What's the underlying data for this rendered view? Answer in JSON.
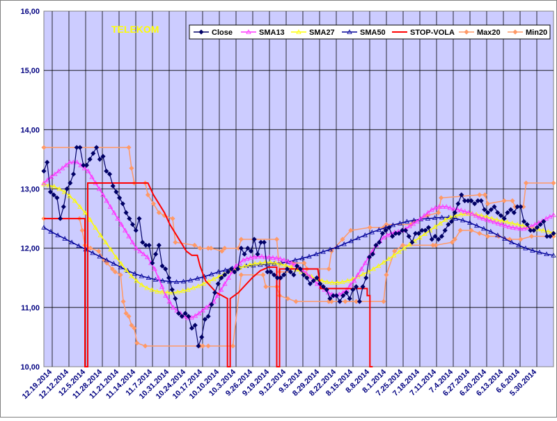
{
  "chart_data": {
    "type": "line",
    "title": "TELEKOM",
    "ylim": [
      10,
      16
    ],
    "y_ticks": [
      "10,00",
      "11,00",
      "12,00",
      "13,00",
      "14,00",
      "15,00",
      "16,00"
    ],
    "x_ticks": [
      "12.19.2014",
      "12.12.2014",
      "12.5.2014",
      "11.28.2014",
      "11.21.2014",
      "11.14.2014",
      "11.7.2014",
      "10.31.2014",
      "10.24.2014",
      "10.17.2014",
      "10.10.2014",
      "10.3.2014",
      "9.26.2014",
      "9.19.2014",
      "9.12.2014",
      "9.5.2014",
      "8.29.2014",
      "8.22.2014",
      "8.15.2014",
      "8.8.2014",
      "8.1.2014",
      "7.25.2014",
      "7.18.2014",
      "7.11.2014",
      "7.4.2014",
      "6.27.2014",
      "6.20.2014",
      "6.13.2014",
      "6.6.2014",
      "5.30.2014"
    ],
    "grid": true,
    "legend_position": "top",
    "colors": {
      "plot_bg": "#ccccff",
      "frame": "#808080",
      "grid": "#000000",
      "Close": "#000066",
      "SMA13": "#ff33ff",
      "SMA27": "#ffff00",
      "SMA50": "#000099",
      "STOP-VOLA": "#ff0000",
      "Max20": "#ff9966",
      "Min20": "#ff9966",
      "title": "#ffff00"
    },
    "series": [
      {
        "name": "Close",
        "marker": "diamond",
        "values": [
          13.3,
          13.45,
          12.95,
          12.9,
          12.85,
          12.5,
          12.7,
          13.0,
          13.1,
          13.25,
          13.7,
          13.7,
          13.4,
          13.4,
          13.5,
          13.6,
          13.7,
          13.5,
          13.55,
          13.3,
          13.25,
          13.05,
          12.95,
          12.85,
          12.75,
          12.6,
          12.5,
          12.4,
          12.3,
          12.5,
          12.1,
          12.05,
          12.05,
          11.75,
          11.9,
          12.05,
          11.7,
          11.65,
          11.5,
          11.3,
          11.15,
          10.9,
          10.85,
          10.9,
          10.85,
          10.65,
          10.7,
          10.35,
          10.5,
          10.8,
          10.85,
          11.05,
          11.25,
          11.4,
          11.5,
          11.55,
          11.6,
          11.65,
          11.6,
          11.65,
          12.0,
          11.9,
          12.0,
          11.95,
          12.15,
          11.9,
          12.1,
          12.1,
          11.6,
          11.6,
          11.55,
          11.5,
          11.5,
          11.55,
          11.65,
          11.6,
          11.55,
          11.7,
          11.65,
          11.55,
          11.5,
          11.4,
          11.45,
          11.5,
          11.4,
          11.35,
          11.3,
          11.15,
          11.2,
          11.2,
          11.1,
          11.2,
          11.25,
          11.15,
          11.3,
          11.35,
          11.1,
          11.35,
          11.5,
          11.85,
          11.9,
          12.05,
          12.1,
          12.25,
          12.3,
          12.35,
          12.2,
          12.25,
          12.25,
          12.3,
          12.3,
          12.2,
          12.1,
          12.25,
          12.25,
          12.3,
          12.3,
          12.35,
          12.15,
          12.2,
          12.15,
          12.2,
          12.3,
          12.4,
          12.45,
          12.6,
          12.75,
          12.9,
          12.8,
          12.8,
          12.8,
          12.75,
          12.8,
          12.8,
          12.65,
          12.6,
          12.65,
          12.7,
          12.6,
          12.55,
          12.5,
          12.6,
          12.65,
          12.6,
          12.7,
          12.7,
          12.45,
          12.4,
          12.3,
          12.3,
          12.35,
          12.4,
          12.45,
          12.2,
          12.2,
          12.25
        ]
      },
      {
        "name": "SMA13",
        "marker": "triangle",
        "values": [
          13.1,
          13.15,
          13.2,
          13.25,
          13.3,
          13.35,
          13.4,
          13.45,
          13.45,
          13.45,
          13.4,
          13.35,
          13.3,
          13.2,
          13.1,
          13.0,
          12.9,
          12.8,
          12.7,
          12.6,
          12.5,
          12.4,
          12.3,
          12.2,
          12.1,
          12.0,
          11.95,
          11.9,
          11.85,
          11.75,
          11.65,
          11.5,
          11.35,
          11.2,
          11.1,
          11.0,
          10.95,
          10.9,
          10.85,
          10.82,
          10.83,
          10.86,
          10.9,
          10.95,
          11.0,
          11.05,
          11.1,
          11.2,
          11.3,
          11.4,
          11.5,
          11.6,
          11.7,
          11.75,
          11.8,
          11.82,
          11.84,
          11.85,
          11.86,
          11.86,
          11.85,
          11.85,
          11.84,
          11.83,
          11.82,
          11.8,
          11.78,
          11.75,
          11.72,
          11.68,
          11.63,
          11.58,
          11.52,
          11.46,
          11.4,
          11.35,
          11.3,
          11.25,
          11.22,
          11.2,
          11.22,
          11.25,
          11.3,
          11.38,
          11.45,
          11.55,
          11.65,
          11.75,
          11.85,
          11.95,
          12.05,
          12.12,
          12.18,
          12.22,
          12.25,
          12.27,
          12.28,
          12.3,
          12.33,
          12.37,
          12.41,
          12.45,
          12.5,
          12.55,
          12.6,
          12.65,
          12.68,
          12.7,
          12.7,
          12.7,
          12.68,
          12.66,
          12.65,
          12.64,
          12.62,
          12.6,
          12.58,
          12.55,
          12.52,
          12.5,
          12.48,
          12.46,
          12.44,
          12.42,
          12.4,
          12.38,
          12.36,
          12.35,
          12.34,
          12.33,
          12.33,
          12.35,
          12.37,
          12.4,
          12.43,
          12.46,
          12.5,
          12.53,
          12.56
        ]
      },
      {
        "name": "SMA27",
        "marker": "triangle",
        "values": [
          13.08,
          13.06,
          13.04,
          13.0,
          12.95,
          12.88,
          12.8,
          12.7,
          12.6,
          12.48,
          12.35,
          12.22,
          12.1,
          11.98,
          11.85,
          11.74,
          11.63,
          11.53,
          11.45,
          11.38,
          11.33,
          11.3,
          11.27,
          11.26,
          11.25,
          11.25,
          11.26,
          11.28,
          11.3,
          11.33,
          11.36,
          11.4,
          11.44,
          11.48,
          11.52,
          11.56,
          11.6,
          11.64,
          11.67,
          11.7,
          11.72,
          11.74,
          11.75,
          11.76,
          11.76,
          11.75,
          11.73,
          11.71,
          11.68,
          11.64,
          11.6,
          11.56,
          11.52,
          11.48,
          11.45,
          11.43,
          11.42,
          11.42,
          11.43,
          11.45,
          11.48,
          11.52,
          11.56,
          11.6,
          11.65,
          11.7,
          11.76,
          11.82,
          11.88,
          11.94,
          12.0,
          12.06,
          12.12,
          12.18,
          12.24,
          12.3,
          12.36,
          12.42,
          12.48,
          12.52,
          12.55,
          12.57,
          12.58,
          12.58,
          12.57,
          12.55,
          12.53,
          12.5,
          12.48,
          12.46,
          12.44,
          12.42,
          12.4,
          12.38,
          12.36,
          12.34,
          12.32,
          12.3,
          12.28,
          12.26
        ]
      },
      {
        "name": "SMA50",
        "marker": "triangle",
        "values": [
          12.35,
          12.28,
          12.22,
          12.16,
          12.1,
          12.04,
          11.98,
          11.92,
          11.86,
          11.8,
          11.74,
          11.68,
          11.62,
          11.57,
          11.53,
          11.5,
          11.47,
          11.45,
          11.44,
          11.43,
          11.44,
          11.46,
          11.49,
          11.52,
          11.56,
          11.6,
          11.63,
          11.66,
          11.68,
          11.7,
          11.71,
          11.72,
          11.73,
          11.74,
          11.75,
          11.77,
          11.8,
          11.83,
          11.86,
          11.9,
          11.94,
          11.98,
          12.02,
          12.07,
          12.12,
          12.17,
          12.22,
          12.27,
          12.31,
          12.35,
          12.39,
          12.42,
          12.45,
          12.47,
          12.49,
          12.5,
          12.51,
          12.52,
          12.52,
          12.5,
          12.47,
          12.43,
          12.38,
          12.33,
          12.28,
          12.22,
          12.16,
          12.1,
          12.05,
          12.0,
          11.96,
          11.93,
          11.9,
          11.88
        ]
      },
      {
        "name": "STOP-VOLA",
        "points": [
          [
            0,
            12.5
          ],
          [
            15,
            12.5
          ],
          [
            15,
            10
          ],
          [
            16,
            10
          ],
          [
            16,
            13.1
          ],
          [
            38,
            13.1
          ],
          [
            40,
            12.9
          ],
          [
            42,
            12.75
          ],
          [
            44,
            12.6
          ],
          [
            46,
            12.4
          ],
          [
            48,
            12.25
          ],
          [
            50,
            12.1
          ],
          [
            52,
            11.95
          ],
          [
            54,
            11.88
          ],
          [
            56,
            11.88
          ],
          [
            57,
            11.7
          ],
          [
            59,
            11.45
          ],
          [
            61,
            11.35
          ],
          [
            63,
            11.25
          ],
          [
            65,
            11.2
          ],
          [
            67,
            11.15
          ],
          [
            67,
            10
          ],
          [
            68,
            10
          ],
          [
            68,
            11.15
          ],
          [
            71,
            11.25
          ],
          [
            73,
            11.35
          ],
          [
            76,
            11.5
          ],
          [
            79,
            11.62
          ],
          [
            82,
            11.68
          ],
          [
            85,
            11.68
          ],
          [
            85,
            10
          ],
          [
            86,
            10
          ],
          [
            86,
            11.65
          ],
          [
            100,
            11.65
          ],
          [
            101,
            11.32
          ],
          [
            118,
            11.32
          ],
          [
            118,
            11.2
          ],
          [
            119,
            11.2
          ],
          [
            119,
            10
          ],
          [
            120,
            10
          ]
        ]
      },
      {
        "name": "Max20",
        "marker": "diamond",
        "points": [
          [
            0,
            13.7
          ],
          [
            31,
            13.7
          ],
          [
            32,
            13.35
          ],
          [
            33,
            13.1
          ],
          [
            37,
            13.1
          ],
          [
            38,
            12.9
          ],
          [
            40,
            12.75
          ],
          [
            42,
            12.6
          ],
          [
            44,
            12.55
          ],
          [
            47,
            12.5
          ],
          [
            48,
            12.1
          ],
          [
            55,
            12.05
          ],
          [
            57,
            12.0
          ],
          [
            60,
            12.0
          ],
          [
            61,
            12.0
          ],
          [
            65,
            11.95
          ],
          [
            66,
            12.0
          ],
          [
            71,
            12.0
          ],
          [
            72,
            12.15
          ],
          [
            85,
            12.15
          ],
          [
            86,
            11.6
          ],
          [
            90,
            11.6
          ],
          [
            91,
            11.75
          ],
          [
            95,
            11.75
          ],
          [
            96,
            11.65
          ],
          [
            104,
            11.65
          ],
          [
            105,
            11.95
          ],
          [
            109,
            12.15
          ],
          [
            112,
            12.3
          ],
          [
            119,
            12.35
          ],
          [
            124,
            12.35
          ],
          [
            125,
            12.4
          ],
          [
            134,
            12.4
          ],
          [
            135,
            12.45
          ],
          [
            140,
            12.55
          ],
          [
            144,
            12.6
          ],
          [
            145,
            12.85
          ],
          [
            159,
            12.9
          ],
          [
            161,
            12.9
          ],
          [
            162,
            12.75
          ],
          [
            168,
            12.8
          ],
          [
            171,
            12.8
          ],
          [
            172,
            12.7
          ],
          [
            175,
            12.7
          ],
          [
            176,
            13.1
          ],
          [
            186,
            13.1
          ]
        ]
      },
      {
        "name": "Min20",
        "marker": "diamond",
        "points": [
          [
            0,
            12.5
          ],
          [
            13,
            12.5
          ],
          [
            14,
            12.3
          ],
          [
            15,
            12.05
          ],
          [
            17,
            12.0
          ],
          [
            20,
            11.95
          ],
          [
            22,
            11.8
          ],
          [
            23,
            11.75
          ],
          [
            25,
            11.65
          ],
          [
            26,
            11.6
          ],
          [
            28,
            11.55
          ],
          [
            29,
            11.1
          ],
          [
            30,
            10.9
          ],
          [
            31,
            10.85
          ],
          [
            32,
            10.7
          ],
          [
            33,
            10.65
          ],
          [
            34,
            10.4
          ],
          [
            37,
            10.35
          ],
          [
            57,
            10.35
          ],
          [
            58,
            10.35
          ],
          [
            60,
            10.35
          ],
          [
            69,
            10.35
          ],
          [
            72,
            11.55
          ],
          [
            80,
            11.55
          ],
          [
            81,
            11.35
          ],
          [
            85,
            11.35
          ],
          [
            86,
            11.2
          ],
          [
            89,
            11.15
          ],
          [
            92,
            11.1
          ],
          [
            104,
            11.1
          ],
          [
            105,
            11.1
          ],
          [
            110,
            11.1
          ],
          [
            114,
            11.1
          ],
          [
            124,
            11.1
          ],
          [
            125,
            11.55
          ],
          [
            128,
            11.95
          ],
          [
            131,
            12.05
          ],
          [
            142,
            12.05
          ],
          [
            143,
            12.05
          ],
          [
            149,
            12.1
          ],
          [
            150,
            12.15
          ],
          [
            152,
            12.3
          ],
          [
            156,
            12.3
          ],
          [
            159,
            12.25
          ],
          [
            162,
            12.2
          ],
          [
            166,
            12.2
          ],
          [
            170,
            12.15
          ],
          [
            174,
            12.15
          ],
          [
            178,
            12.2
          ],
          [
            186,
            12.2
          ]
        ]
      }
    ]
  }
}
